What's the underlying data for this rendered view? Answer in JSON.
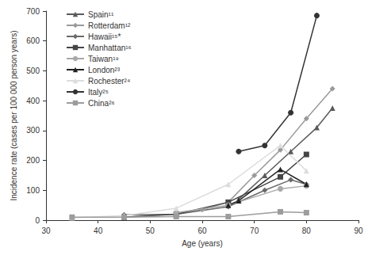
{
  "chart_data": {
    "type": "line",
    "x_label": "Age (years)",
    "y_label": "Incidence rate (cases per 100 000 person years)",
    "xlim": [
      30,
      90
    ],
    "xticks": [
      30,
      40,
      50,
      60,
      70,
      80,
      90
    ],
    "ylim": [
      0,
      700
    ],
    "yticks": [
      0,
      100,
      200,
      300,
      400,
      500,
      600,
      700
    ],
    "grid": false,
    "legend": "upper left",
    "series": [
      {
        "name": "Spain¹¹",
        "color": "#5a5a5a",
        "marker": "triangle",
        "x": [
          67,
          72,
          77,
          82,
          85
        ],
        "values": [
          70,
          150,
          230,
          310,
          375
        ]
      },
      {
        "name": "Rotterdam¹²",
        "color": "#9a9a9a",
        "marker": "diamond",
        "x": [
          55,
          60,
          65,
          70,
          75,
          80,
          85
        ],
        "values": [
          20,
          35,
          60,
          150,
          235,
          340,
          440
        ]
      },
      {
        "name": "Hawaii¹⁵*",
        "color": "#6a6a6a",
        "marker": "diamond",
        "x": [
          45,
          55,
          65,
          72,
          77,
          80
        ],
        "values": [
          18,
          20,
          45,
          100,
          135,
          120
        ]
      },
      {
        "name": "Manhattan¹⁶",
        "color": "#454545",
        "marker": "square",
        "x": [
          45,
          55,
          65,
          75,
          80
        ],
        "values": [
          10,
          20,
          60,
          145,
          220
        ]
      },
      {
        "name": "Taiwan¹⁹",
        "color": "#a8a8a8",
        "marker": "circle",
        "x": [
          55,
          65,
          75,
          80
        ],
        "values": [
          25,
          50,
          105,
          115
        ]
      },
      {
        "name": "London²³",
        "color": "#222222",
        "marker": "triangle",
        "x": [
          65,
          67,
          75,
          80
        ],
        "values": [
          50,
          65,
          170,
          120
        ]
      },
      {
        "name": "Rochester²⁴",
        "color": "#dcdcdc",
        "marker": "triangle",
        "x": [
          35,
          45,
          55,
          65,
          75,
          80
        ],
        "values": [
          8,
          15,
          40,
          120,
          250,
          165
        ]
      },
      {
        "name": "Italy²⁵",
        "color": "#333333",
        "marker": "circle",
        "x": [
          67,
          72,
          77,
          82
        ],
        "values": [
          230,
          250,
          360,
          685
        ]
      },
      {
        "name": "China²⁶",
        "color": "#9c9c9c",
        "marker": "square",
        "x": [
          35,
          45,
          55,
          65,
          75,
          80
        ],
        "values": [
          10,
          10,
          12,
          12,
          28,
          25
        ]
      }
    ]
  }
}
